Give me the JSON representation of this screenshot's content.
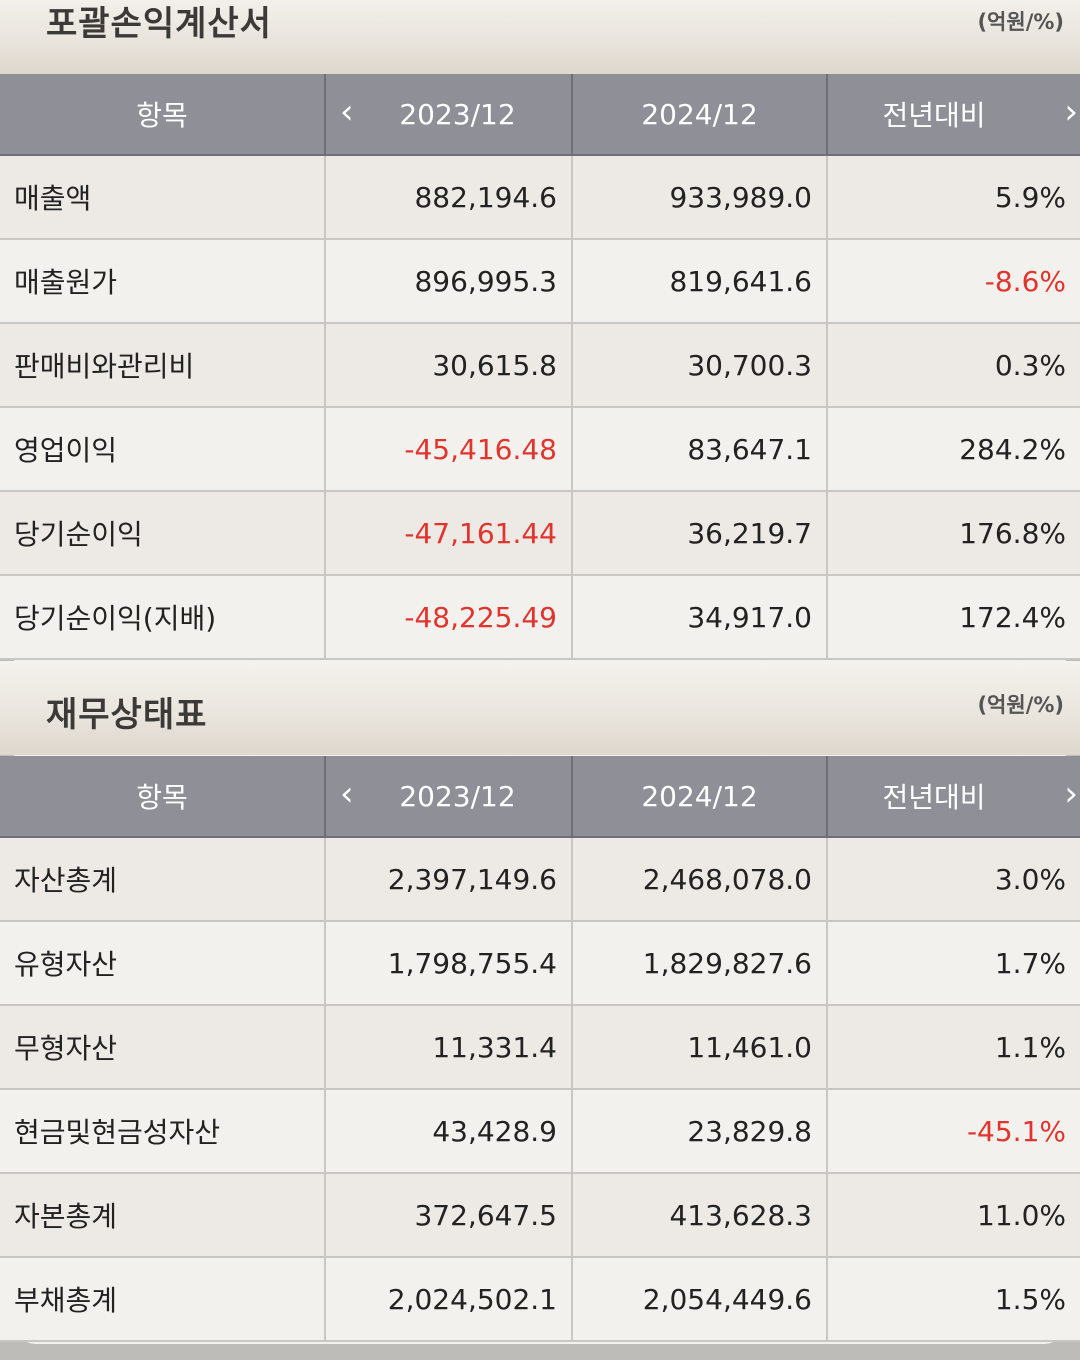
{
  "income": {
    "title": "포괄손익계산서",
    "unit": "(억원/%)",
    "headers": {
      "item": "항목",
      "prev_arrow": "‹",
      "y1": "2023/12",
      "y2": "2024/12",
      "yoy": "전년대비",
      "next_arrow": "›"
    },
    "rows": [
      {
        "label": "매출액",
        "y1": "882,194.6",
        "y2": "933,989.0",
        "yoy": "5.9%"
      },
      {
        "label": "매출원가",
        "y1": "896,995.3",
        "y2": "819,641.6",
        "yoy": "-8.6%"
      },
      {
        "label": "판매비와관리비",
        "y1": "30,615.8",
        "y2": "30,700.3",
        "yoy": "0.3%"
      },
      {
        "label": "영업이익",
        "y1": "-45,416.48",
        "y2": "83,647.1",
        "yoy": "284.2%"
      },
      {
        "label": "당기순이익",
        "y1": "-47,161.44",
        "y2": "36,219.7",
        "yoy": "176.8%"
      },
      {
        "label": "당기순이익(지배)",
        "y1": "-48,225.49",
        "y2": "34,917.0",
        "yoy": "172.4%"
      }
    ]
  },
  "balance": {
    "title": "재무상태표",
    "unit": "(억원/%)",
    "headers": {
      "item": "항목",
      "prev_arrow": "‹",
      "y1": "2023/12",
      "y2": "2024/12",
      "yoy": "전년대비",
      "next_arrow": "›"
    },
    "rows": [
      {
        "label": "자산총계",
        "y1": "2,397,149.6",
        "y2": "2,468,078.0",
        "yoy": "3.0%"
      },
      {
        "label": "유형자산",
        "y1": "1,798,755.4",
        "y2": "1,829,827.6",
        "yoy": "1.7%"
      },
      {
        "label": "무형자산",
        "y1": "11,331.4",
        "y2": "11,461.0",
        "yoy": "1.1%"
      },
      {
        "label": "현금및현금성자산",
        "y1": "43,428.9",
        "y2": "23,829.8",
        "yoy": "-45.1%"
      },
      {
        "label": "자본총계",
        "y1": "372,647.5",
        "y2": "413,628.3",
        "yoy": "11.0%"
      },
      {
        "label": "부채총계",
        "y1": "2,024,502.1",
        "y2": "2,054,449.6",
        "yoy": "1.5%"
      }
    ]
  },
  "colors": {
    "negative": "#e0342c",
    "header_bg": "#8f9097",
    "text": "#222222"
  }
}
